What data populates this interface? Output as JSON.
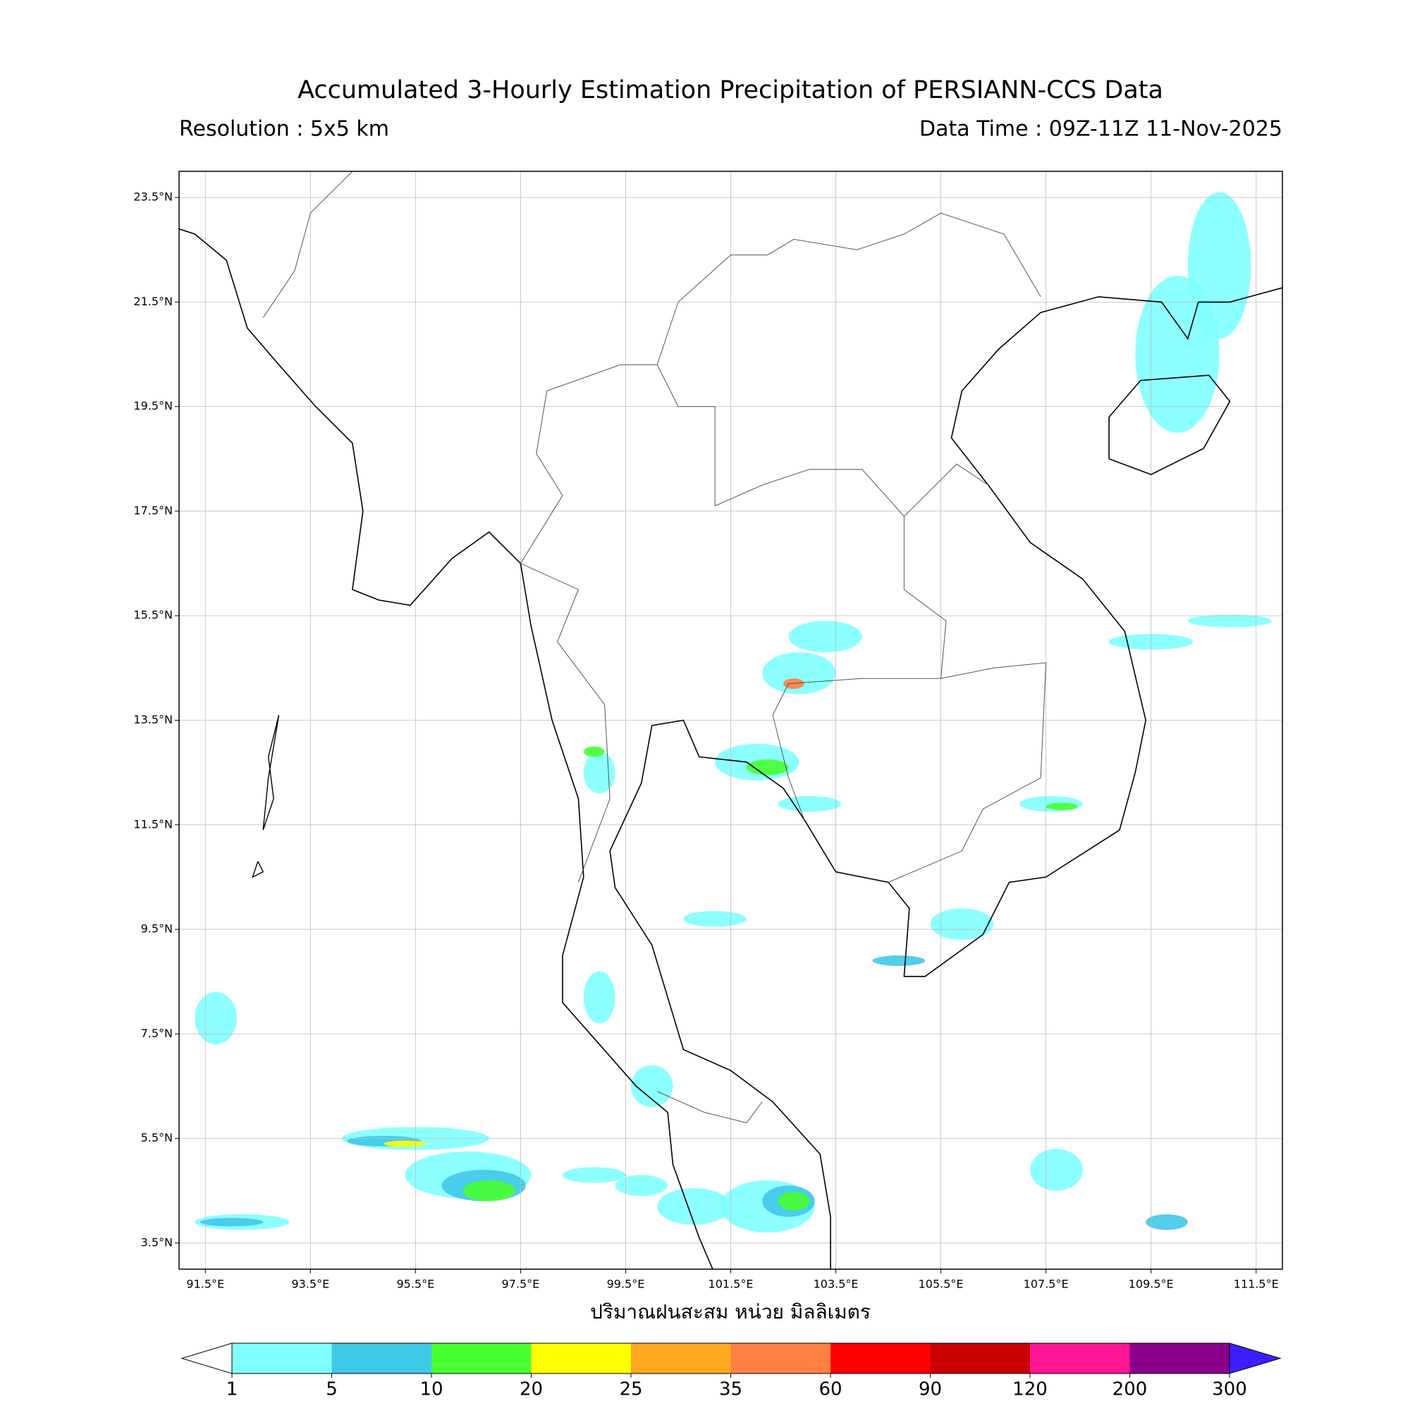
{
  "title": "Accumulated 3-Hourly Estimation Precipitation of PERSIANN-CCS Data",
  "resolution": "Resolution : 5x5 km",
  "data_time": "Data Time : 09Z-11Z 11-Nov-2025",
  "map": {
    "lon_range": [
      91,
      112
    ],
    "lat_range": [
      3,
      24
    ],
    "lat_ticks": [
      {
        "value": 23.5,
        "label": "23.5°N"
      },
      {
        "value": 21.5,
        "label": "21.5°N"
      },
      {
        "value": 19.5,
        "label": "19.5°N"
      },
      {
        "value": 17.5,
        "label": "17.5°N"
      },
      {
        "value": 15.5,
        "label": "15.5°N"
      },
      {
        "value": 13.5,
        "label": "13.5°N"
      },
      {
        "value": 11.5,
        "label": "11.5°N"
      },
      {
        "value": 9.5,
        "label": "9.5°N"
      },
      {
        "value": 7.5,
        "label": "7.5°N"
      },
      {
        "value": 5.5,
        "label": "5.5°N"
      },
      {
        "value": 3.5,
        "label": "3.5°N"
      }
    ],
    "lon_ticks": [
      {
        "value": 91.5,
        "label": "91.5°E"
      },
      {
        "value": 93.5,
        "label": "93.5°E"
      },
      {
        "value": 95.5,
        "label": "95.5°E"
      },
      {
        "value": 97.5,
        "label": "97.5°E"
      },
      {
        "value": 99.5,
        "label": "99.5°E"
      },
      {
        "value": 101.5,
        "label": "101.5°E"
      },
      {
        "value": 103.5,
        "label": "103.5°E"
      },
      {
        "value": 105.5,
        "label": "105.5°E"
      },
      {
        "value": 107.5,
        "label": "107.5°E"
      },
      {
        "value": 109.5,
        "label": "109.5°E"
      },
      {
        "value": 111.5,
        "label": "111.5°E"
      }
    ],
    "x_label": "ปริมาณฝนสะสม หน่วย มิลลิเมตร"
  },
  "colorbar": {
    "levels": [
      1,
      5,
      10,
      20,
      25,
      35,
      60,
      90,
      120,
      200,
      300
    ],
    "colors": [
      "#80ffff",
      "#40c8e8",
      "#48ff30",
      "#ffff00",
      "#ffa820",
      "#ff8040",
      "#ff0000",
      "#c80000",
      "#ff1493",
      "#8b008b"
    ],
    "under_color": "#ffffff",
    "over_color": "#3c1eff"
  }
}
